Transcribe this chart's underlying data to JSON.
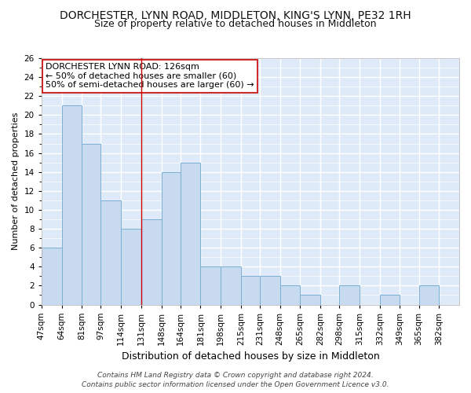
{
  "title": "DORCHESTER, LYNN ROAD, MIDDLETON, KING'S LYNN, PE32 1RH",
  "subtitle": "Size of property relative to detached houses in Middleton",
  "xlabel": "Distribution of detached houses by size in Middleton",
  "ylabel": "Number of detached properties",
  "bar_values": [
    6,
    21,
    17,
    11,
    8,
    9,
    14,
    15,
    4,
    4,
    3,
    3,
    2,
    1,
    0,
    2,
    0,
    1,
    0,
    2,
    0
  ],
  "bin_edges": [
    47,
    64,
    81,
    97,
    114,
    131,
    148,
    164,
    181,
    198,
    215,
    231,
    248,
    265,
    282,
    298,
    315,
    332,
    349,
    365,
    382,
    399
  ],
  "x_tick_labels": [
    "47sqm",
    "64sqm",
    "81sqm",
    "97sqm",
    "114sqm",
    "131sqm",
    "148sqm",
    "164sqm",
    "181sqm",
    "198sqm",
    "215sqm",
    "231sqm",
    "248sqm",
    "265sqm",
    "282sqm",
    "298sqm",
    "315sqm",
    "332sqm",
    "349sqm",
    "365sqm",
    "382sqm"
  ],
  "bar_color": "#c8daf0",
  "bar_edge_color": "#7bafd4",
  "fig_background": "#ffffff",
  "ax_background": "#deeaf7",
  "grid_color": "#ffffff",
  "vline_x": 131,
  "vline_color": "#cc0000",
  "ylim": [
    0,
    26
  ],
  "yticks": [
    0,
    2,
    4,
    6,
    8,
    10,
    12,
    14,
    16,
    18,
    20,
    22,
    24,
    26
  ],
  "annotation_title": "DORCHESTER LYNN ROAD: 126sqm",
  "annotation_line1": "← 50% of detached houses are smaller (60)",
  "annotation_line2": "50% of semi-detached houses are larger (60) →",
  "footer_line1": "Contains HM Land Registry data © Crown copyright and database right 2024.",
  "footer_line2": "Contains public sector information licensed under the Open Government Licence v3.0.",
  "title_fontsize": 10,
  "subtitle_fontsize": 9,
  "xlabel_fontsize": 9,
  "ylabel_fontsize": 8,
  "tick_fontsize": 7.5,
  "annotation_fontsize": 8,
  "footer_fontsize": 6.5
}
